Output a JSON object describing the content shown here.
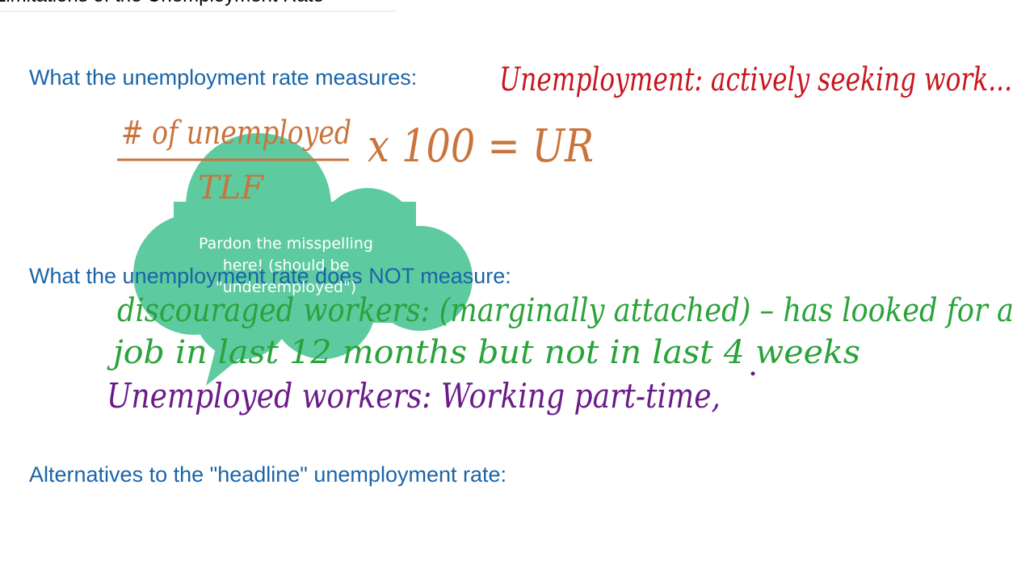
{
  "header": {
    "title": "Limitations of the Unemployment Rate"
  },
  "headings": [
    "What the unemployment rate measures:",
    "What the unemployment rate does NOT measure:",
    "Alternatives to the \"headline\" unemployment rate:"
  ],
  "notes": {
    "definition": "Unemployment: actively seeking work...",
    "numerator": "# of unemployed",
    "formula": "x 100 = UR",
    "denominator": "TLF",
    "discouraged_1": "discouraged workers: (marginally attached) – has looked for a",
    "discouraged_2": "job in last 12 months but not in last 4 weeks",
    "underemployed": "Unemployed workers: Working part-time,"
  },
  "callout": {
    "lines": [
      "Pardon the misspelling",
      "here! (should be",
      "\"underemployed\")"
    ]
  }
}
